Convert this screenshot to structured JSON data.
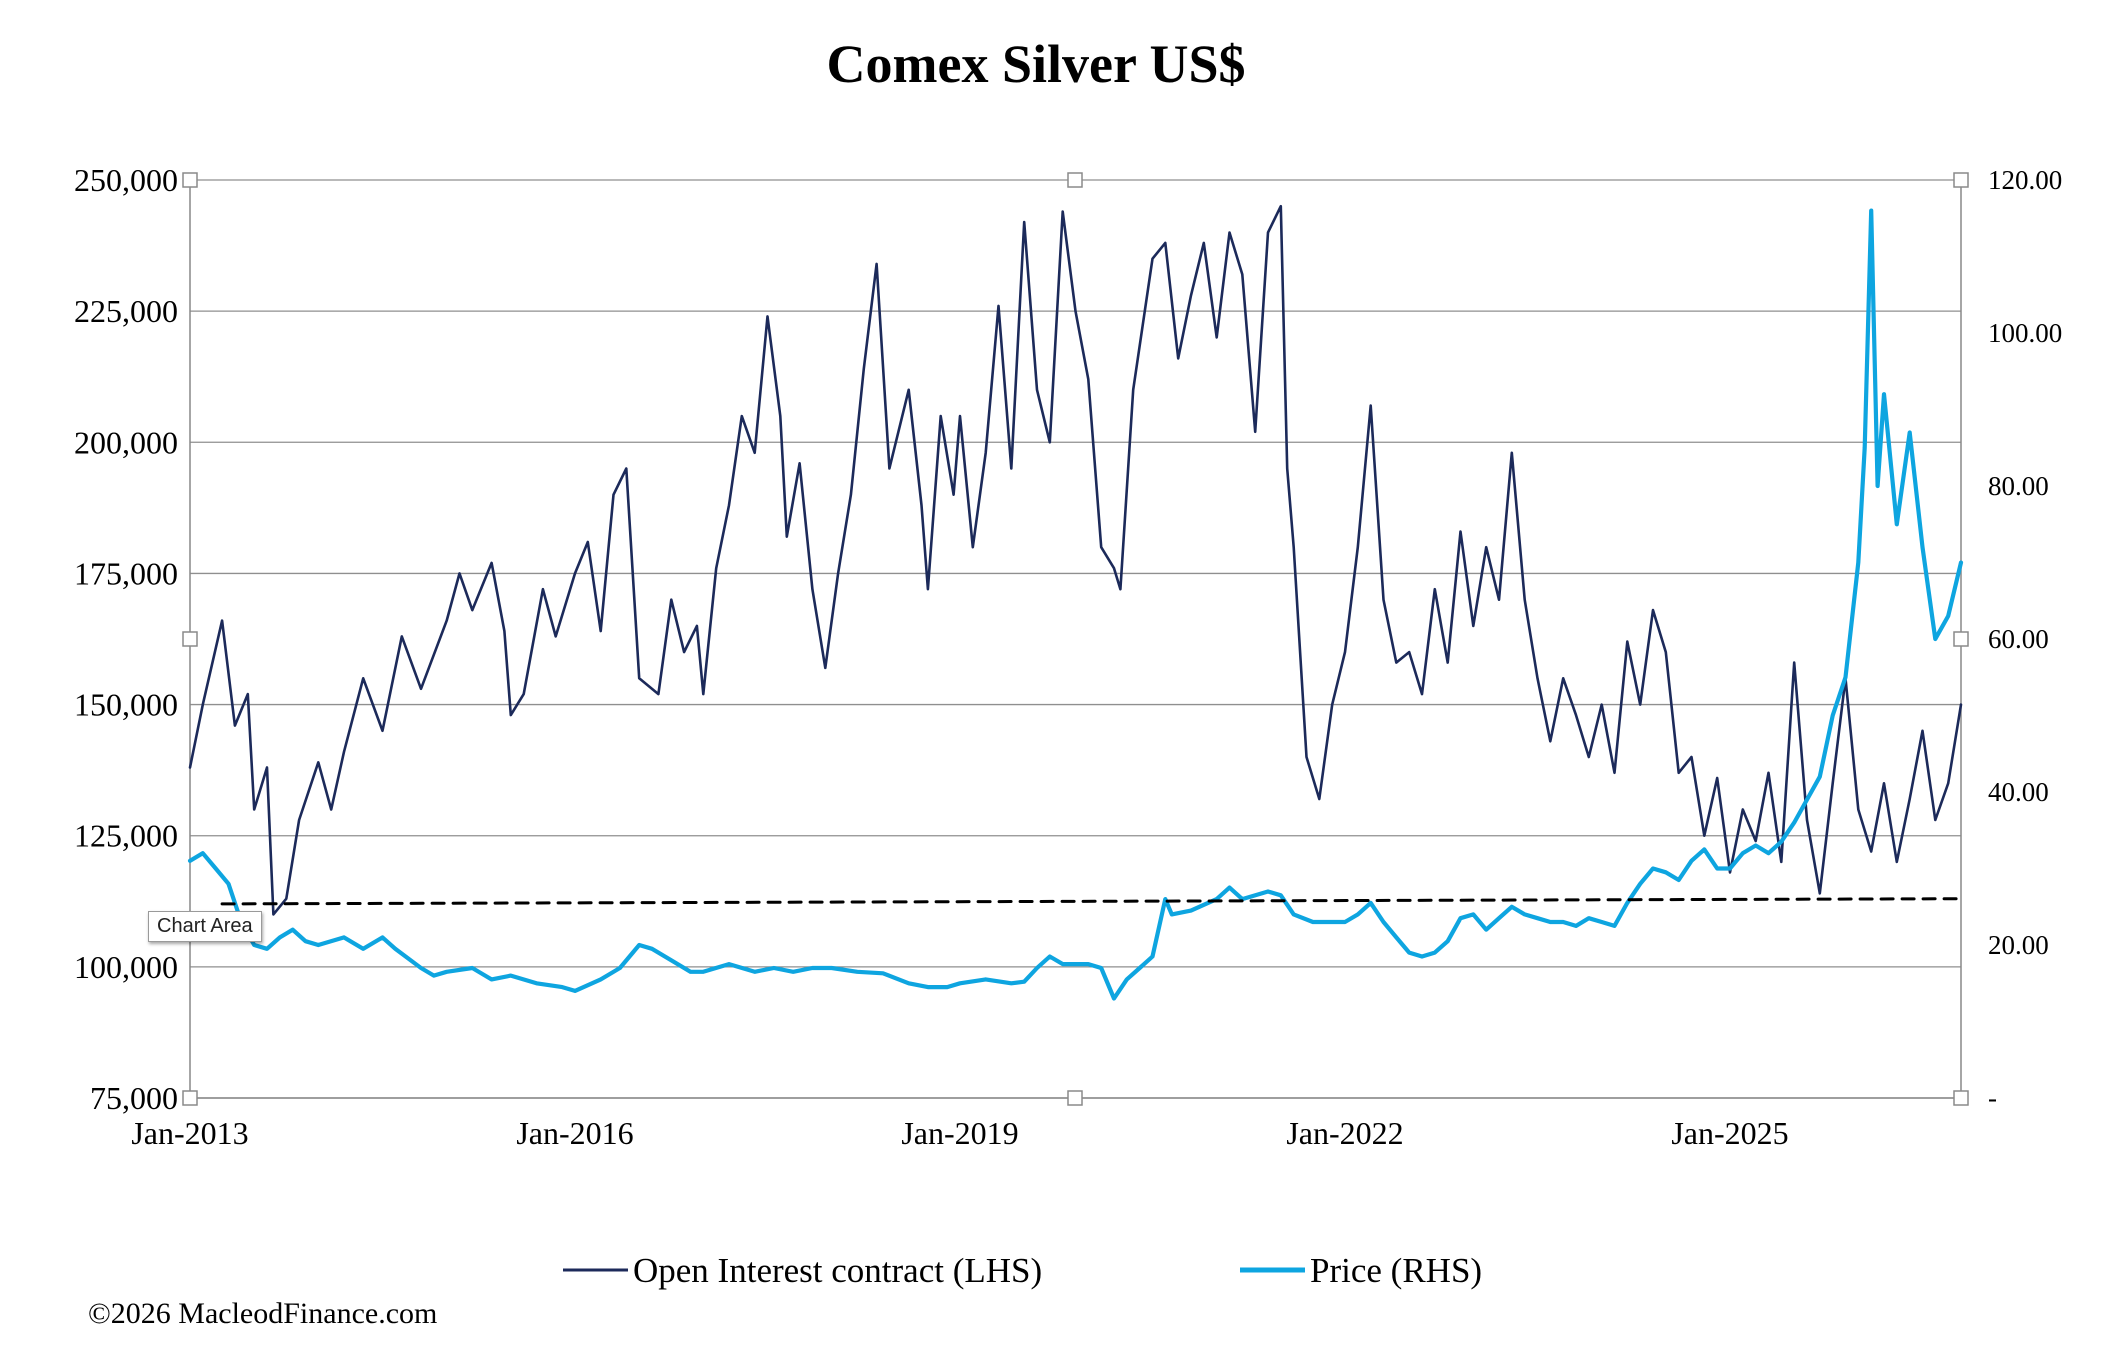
{
  "chart_data": {
    "type": "line",
    "title": "Comex Silver US$",
    "y_left": {
      "ticks": [
        "250,000",
        "225,000",
        "200,000",
        "175,000",
        "150,000",
        "125,000",
        "100,000",
        "75,000"
      ],
      "values": [
        250000,
        225000,
        200000,
        175000,
        150000,
        125000,
        100000,
        75000
      ],
      "range": [
        75000,
        250000
      ]
    },
    "y_right": {
      "ticks": [
        "120.00",
        "100.00",
        "80.00",
        "60.00",
        "40.00",
        "20.00",
        "-"
      ],
      "values": [
        120,
        100,
        80,
        60,
        40,
        20,
        0
      ],
      "range": [
        0,
        120
      ]
    },
    "x": {
      "ticks": [
        "Jan-2013",
        "Jan-2016",
        "Jan-2019",
        "Jan-2022",
        "Jan-2025"
      ],
      "tick_years": [
        2013,
        2016,
        2019,
        2022,
        2025
      ],
      "range": [
        2013.0,
        2026.8
      ]
    },
    "grid": true,
    "legend_placement": "bottom",
    "series": [
      {
        "name": "Open Interest contract (LHS)",
        "axis": "left",
        "color": "#1c2a5a",
        "points": [
          [
            2013.0,
            138000
          ],
          [
            2013.1,
            150000
          ],
          [
            2013.25,
            166000
          ],
          [
            2013.35,
            146000
          ],
          [
            2013.45,
            152000
          ],
          [
            2013.5,
            130000
          ],
          [
            2013.6,
            138000
          ],
          [
            2013.65,
            110000
          ],
          [
            2013.75,
            113000
          ],
          [
            2013.85,
            128000
          ],
          [
            2014.0,
            139000
          ],
          [
            2014.1,
            130000
          ],
          [
            2014.2,
            141000
          ],
          [
            2014.35,
            155000
          ],
          [
            2014.5,
            145000
          ],
          [
            2014.65,
            163000
          ],
          [
            2014.8,
            153000
          ],
          [
            2015.0,
            166000
          ],
          [
            2015.1,
            175000
          ],
          [
            2015.2,
            168000
          ],
          [
            2015.35,
            177000
          ],
          [
            2015.45,
            164000
          ],
          [
            2015.5,
            148000
          ],
          [
            2015.6,
            152000
          ],
          [
            2015.75,
            172000
          ],
          [
            2015.85,
            163000
          ],
          [
            2016.0,
            175000
          ],
          [
            2016.1,
            181000
          ],
          [
            2016.2,
            164000
          ],
          [
            2016.3,
            190000
          ],
          [
            2016.4,
            195000
          ],
          [
            2016.5,
            155000
          ],
          [
            2016.65,
            152000
          ],
          [
            2016.75,
            170000
          ],
          [
            2016.85,
            160000
          ],
          [
            2016.95,
            165000
          ],
          [
            2017.0,
            152000
          ],
          [
            2017.1,
            176000
          ],
          [
            2017.2,
            188000
          ],
          [
            2017.3,
            205000
          ],
          [
            2017.4,
            198000
          ],
          [
            2017.5,
            224000
          ],
          [
            2017.6,
            205000
          ],
          [
            2017.65,
            182000
          ],
          [
            2017.75,
            196000
          ],
          [
            2017.85,
            172000
          ],
          [
            2017.95,
            157000
          ],
          [
            2018.05,
            175000
          ],
          [
            2018.15,
            190000
          ],
          [
            2018.25,
            214000
          ],
          [
            2018.35,
            234000
          ],
          [
            2018.45,
            195000
          ],
          [
            2018.6,
            210000
          ],
          [
            2018.7,
            188000
          ],
          [
            2018.75,
            172000
          ],
          [
            2018.85,
            205000
          ],
          [
            2018.95,
            190000
          ],
          [
            2019.0,
            205000
          ],
          [
            2019.1,
            180000
          ],
          [
            2019.2,
            198000
          ],
          [
            2019.3,
            226000
          ],
          [
            2019.4,
            195000
          ],
          [
            2019.5,
            242000
          ],
          [
            2019.6,
            210000
          ],
          [
            2019.7,
            200000
          ],
          [
            2019.8,
            244000
          ],
          [
            2019.9,
            225000
          ],
          [
            2020.0,
            212000
          ],
          [
            2020.1,
            180000
          ],
          [
            2020.2,
            176000
          ],
          [
            2020.25,
            172000
          ],
          [
            2020.35,
            210000
          ],
          [
            2020.5,
            235000
          ],
          [
            2020.6,
            238000
          ],
          [
            2020.7,
            216000
          ],
          [
            2020.8,
            228000
          ],
          [
            2020.9,
            238000
          ],
          [
            2021.0,
            220000
          ],
          [
            2021.1,
            240000
          ],
          [
            2021.2,
            232000
          ],
          [
            2021.3,
            202000
          ],
          [
            2021.4,
            240000
          ],
          [
            2021.5,
            245000
          ],
          [
            2021.55,
            195000
          ],
          [
            2021.6,
            180000
          ],
          [
            2021.7,
            140000
          ],
          [
            2021.8,
            132000
          ],
          [
            2021.9,
            150000
          ],
          [
            2022.0,
            160000
          ],
          [
            2022.1,
            180000
          ],
          [
            2022.2,
            207000
          ],
          [
            2022.3,
            170000
          ],
          [
            2022.4,
            158000
          ],
          [
            2022.5,
            160000
          ],
          [
            2022.6,
            152000
          ],
          [
            2022.7,
            172000
          ],
          [
            2022.8,
            158000
          ],
          [
            2022.9,
            183000
          ],
          [
            2023.0,
            165000
          ],
          [
            2023.1,
            180000
          ],
          [
            2023.2,
            170000
          ],
          [
            2023.3,
            198000
          ],
          [
            2023.4,
            170000
          ],
          [
            2023.5,
            155000
          ],
          [
            2023.6,
            143000
          ],
          [
            2023.7,
            155000
          ],
          [
            2023.8,
            148000
          ],
          [
            2023.9,
            140000
          ],
          [
            2024.0,
            150000
          ],
          [
            2024.1,
            137000
          ],
          [
            2024.2,
            162000
          ],
          [
            2024.3,
            150000
          ],
          [
            2024.4,
            168000
          ],
          [
            2024.5,
            160000
          ],
          [
            2024.6,
            137000
          ],
          [
            2024.7,
            140000
          ],
          [
            2024.8,
            125000
          ],
          [
            2024.9,
            136000
          ],
          [
            2025.0,
            118000
          ],
          [
            2025.1,
            130000
          ],
          [
            2025.2,
            124000
          ],
          [
            2025.3,
            137000
          ],
          [
            2025.4,
            120000
          ],
          [
            2025.5,
            158000
          ],
          [
            2025.6,
            128000
          ],
          [
            2025.7,
            114000
          ],
          [
            2025.8,
            135000
          ],
          [
            2025.9,
            155000
          ],
          [
            2026.0,
            130000
          ],
          [
            2026.1,
            122000
          ],
          [
            2026.2,
            135000
          ],
          [
            2026.3,
            120000
          ],
          [
            2026.4,
            132000
          ],
          [
            2026.5,
            145000
          ],
          [
            2026.6,
            128000
          ],
          [
            2026.7,
            135000
          ],
          [
            2026.8,
            150000
          ]
        ]
      },
      {
        "name": "Price (RHS)",
        "axis": "right",
        "color": "#0ea5e0",
        "points": [
          [
            2013.0,
            31.0
          ],
          [
            2013.1,
            32.0
          ],
          [
            2013.2,
            30.0
          ],
          [
            2013.3,
            28.0
          ],
          [
            2013.4,
            23.0
          ],
          [
            2013.5,
            20.0
          ],
          [
            2013.6,
            19.5
          ],
          [
            2013.7,
            21.0
          ],
          [
            2013.8,
            22.0
          ],
          [
            2013.9,
            20.5
          ],
          [
            2014.0,
            20.0
          ],
          [
            2014.2,
            21.0
          ],
          [
            2014.35,
            19.5
          ],
          [
            2014.5,
            21.0
          ],
          [
            2014.6,
            19.5
          ],
          [
            2014.8,
            17.0
          ],
          [
            2014.9,
            16.0
          ],
          [
            2015.0,
            16.5
          ],
          [
            2015.2,
            17.0
          ],
          [
            2015.35,
            15.5
          ],
          [
            2015.5,
            16.0
          ],
          [
            2015.7,
            15.0
          ],
          [
            2015.9,
            14.5
          ],
          [
            2016.0,
            14.0
          ],
          [
            2016.2,
            15.5
          ],
          [
            2016.35,
            17.0
          ],
          [
            2016.5,
            20.0
          ],
          [
            2016.6,
            19.5
          ],
          [
            2016.75,
            18.0
          ],
          [
            2016.9,
            16.5
          ],
          [
            2017.0,
            16.5
          ],
          [
            2017.2,
            17.5
          ],
          [
            2017.4,
            16.5
          ],
          [
            2017.55,
            17.0
          ],
          [
            2017.7,
            16.5
          ],
          [
            2017.85,
            17.0
          ],
          [
            2018.0,
            17.0
          ],
          [
            2018.2,
            16.5
          ],
          [
            2018.4,
            16.3
          ],
          [
            2018.6,
            15.0
          ],
          [
            2018.75,
            14.5
          ],
          [
            2018.9,
            14.5
          ],
          [
            2019.0,
            15.0
          ],
          [
            2019.2,
            15.5
          ],
          [
            2019.4,
            15.0
          ],
          [
            2019.5,
            15.2
          ],
          [
            2019.6,
            17.0
          ],
          [
            2019.7,
            18.5
          ],
          [
            2019.8,
            17.5
          ],
          [
            2020.0,
            17.5
          ],
          [
            2020.1,
            17.0
          ],
          [
            2020.2,
            13.0
          ],
          [
            2020.3,
            15.5
          ],
          [
            2020.4,
            17.0
          ],
          [
            2020.5,
            18.5
          ],
          [
            2020.6,
            26.0
          ],
          [
            2020.65,
            24.0
          ],
          [
            2020.8,
            24.5
          ],
          [
            2021.0,
            26.0
          ],
          [
            2021.1,
            27.5
          ],
          [
            2021.2,
            26.0
          ],
          [
            2021.4,
            27.0
          ],
          [
            2021.5,
            26.5
          ],
          [
            2021.6,
            24.0
          ],
          [
            2021.75,
            23.0
          ],
          [
            2021.9,
            23.0
          ],
          [
            2022.0,
            23.0
          ],
          [
            2022.1,
            24.0
          ],
          [
            2022.2,
            25.5
          ],
          [
            2022.3,
            23.0
          ],
          [
            2022.4,
            21.0
          ],
          [
            2022.5,
            19.0
          ],
          [
            2022.6,
            18.5
          ],
          [
            2022.7,
            19.0
          ],
          [
            2022.8,
            20.5
          ],
          [
            2022.9,
            23.5
          ],
          [
            2023.0,
            24.0
          ],
          [
            2023.1,
            22.0
          ],
          [
            2023.2,
            23.5
          ],
          [
            2023.3,
            25.0
          ],
          [
            2023.4,
            24.0
          ],
          [
            2023.5,
            23.5
          ],
          [
            2023.6,
            23.0
          ],
          [
            2023.7,
            23.0
          ],
          [
            2023.8,
            22.5
          ],
          [
            2023.9,
            23.5
          ],
          [
            2024.0,
            23.0
          ],
          [
            2024.1,
            22.5
          ],
          [
            2024.2,
            25.5
          ],
          [
            2024.3,
            28.0
          ],
          [
            2024.4,
            30.0
          ],
          [
            2024.5,
            29.5
          ],
          [
            2024.6,
            28.5
          ],
          [
            2024.7,
            31.0
          ],
          [
            2024.8,
            32.5
          ],
          [
            2024.9,
            30.0
          ],
          [
            2025.0,
            30.0
          ],
          [
            2025.1,
            32.0
          ],
          [
            2025.2,
            33.0
          ],
          [
            2025.3,
            32.0
          ],
          [
            2025.4,
            33.5
          ],
          [
            2025.5,
            36.0
          ],
          [
            2025.6,
            39.0
          ],
          [
            2025.7,
            42.0
          ],
          [
            2025.8,
            50.0
          ],
          [
            2025.9,
            55.0
          ],
          [
            2026.0,
            70.0
          ],
          [
            2026.05,
            85.0
          ],
          [
            2026.1,
            116.0
          ],
          [
            2026.15,
            80.0
          ],
          [
            2026.2,
            92.0
          ],
          [
            2026.3,
            75.0
          ],
          [
            2026.4,
            87.0
          ],
          [
            2026.5,
            72.0
          ],
          [
            2026.6,
            60.0
          ],
          [
            2026.7,
            63.0
          ],
          [
            2026.8,
            70.0
          ]
        ]
      },
      {
        "name": "",
        "axis": "left",
        "color": "#000000",
        "style": "dashed",
        "points": [
          [
            2013.25,
            112000
          ],
          [
            2026.8,
            113000
          ]
        ]
      }
    ]
  },
  "legend": {
    "items": [
      {
        "label": "Open Interest contract (LHS)",
        "color": "#1c2a5a"
      },
      {
        "label": "Price (RHS)",
        "color": "#0ea5e0"
      }
    ]
  },
  "copyright": "©2026 MacleodFinance.com",
  "tooltip": "Chart Area"
}
